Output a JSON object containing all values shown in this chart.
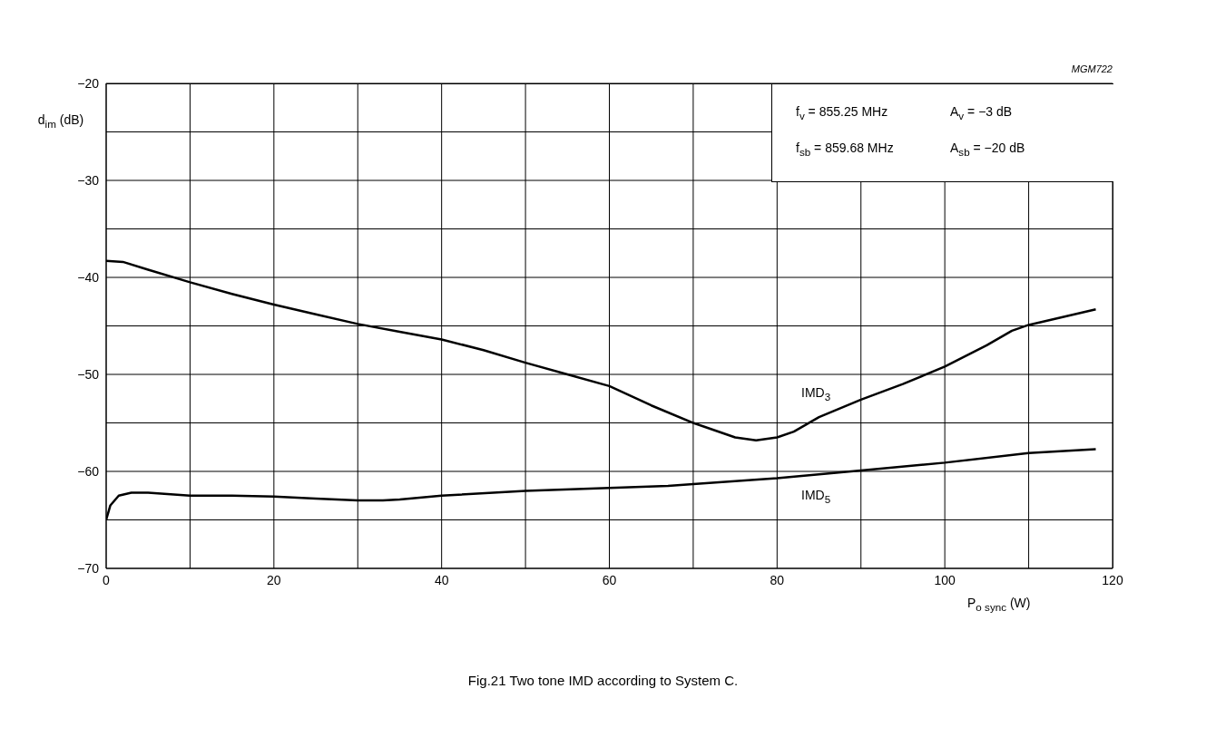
{
  "chart_data": {
    "type": "line",
    "title": "Fig.21  Two tone IMD according to System C.",
    "xlabel": "P$_{o sync}$ (W)",
    "ylabel": "d$_{im}$ (dB)",
    "annotations": [
      "MGM722",
      "f$_{v}$ = 855.25 MHz",
      "A$_{v}$ = −3 dB",
      "f$_{sb}$ = 859.68 MHz",
      "A$_{sb}$ = −20 dB",
      "IMD$_{3}$",
      "IMD$_{5}$"
    ],
    "series": [
      {
        "color": "#000000",
        "x": [
          0,
          2,
          5,
          10,
          15,
          20,
          25,
          30,
          35,
          40,
          45,
          50,
          55,
          60,
          65,
          70,
          75,
          77.5,
          80,
          82,
          85,
          90,
          95,
          100,
          105,
          108,
          110,
          118
        ],
        "values": [
          -38.3,
          -38.4,
          -39.2,
          -40.5,
          -41.7,
          -42.8,
          -43.8,
          -44.8,
          -45.6,
          -46.4,
          -47.5,
          -48.8,
          -50,
          -51.2,
          -53.2,
          -55,
          -56.5,
          -56.8,
          -56.5,
          -55.9,
          -54.4,
          -52.6,
          -51,
          -49.2,
          -47,
          -45.5,
          -44.9,
          -43.3
        ]
      },
      {
        "color": "#000000",
        "x": [
          0,
          0.5,
          1.5,
          3,
          5,
          10,
          15,
          20,
          25,
          30,
          33,
          35,
          40,
          50,
          60,
          67,
          70,
          80,
          90,
          100,
          110,
          118
        ],
        "values": [
          -65,
          -63.5,
          -62.5,
          -62.2,
          -62.2,
          -62.5,
          -62.5,
          -62.6,
          -62.8,
          -63,
          -63,
          -62.9,
          -62.5,
          -62,
          -61.7,
          -61.5,
          -61.3,
          -60.7,
          -59.9,
          -59.1,
          -58.1,
          -57.7
        ]
      }
    ],
    "xlim": [
      0,
      120
    ],
    "xticks": [
      0,
      {
        "value": 10,
        "label": null
      },
      20,
      {
        "value": 30,
        "label": null
      },
      40,
      {
        "value": 50,
        "label": null
      },
      60,
      {
        "value": 70,
        "label": null
      },
      80,
      {
        "value": 90,
        "label": null
      },
      100,
      {
        "value": 110,
        "label": null
      },
      120
    ],
    "ylim": [
      -70,
      -20
    ],
    "yticks": [
      -70,
      {
        "value": -65,
        "label": null
      },
      -60,
      {
        "value": -55,
        "label": null
      },
      -50,
      {
        "value": -45,
        "label": null
      },
      -40,
      {
        "value": -35,
        "label": null
      },
      -30,
      {
        "value": -25,
        "label": null
      },
      -20
    ],
    "grid": true,
    "line_style": "solid",
    "marker": "none"
  }
}
